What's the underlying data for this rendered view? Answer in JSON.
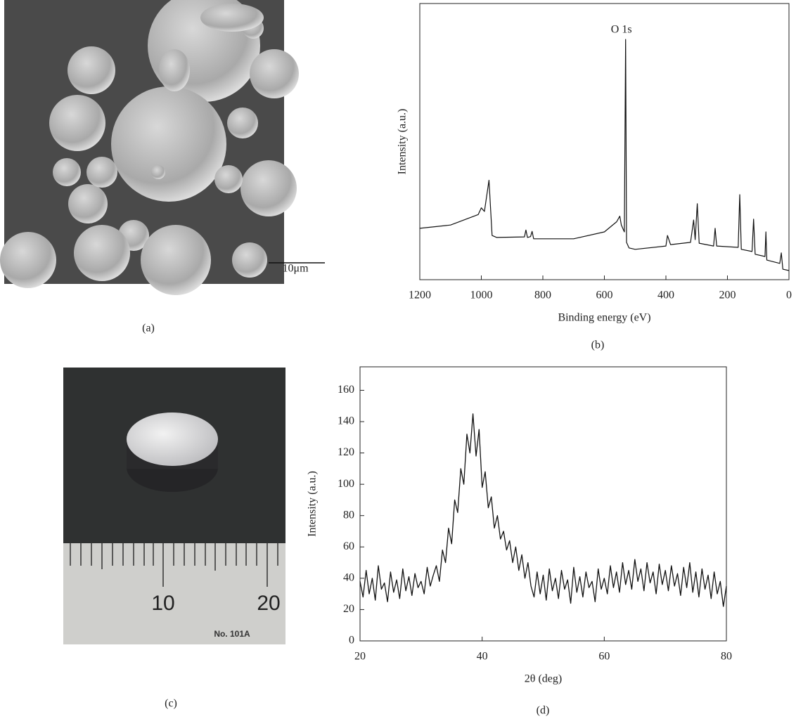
{
  "panels": [
    {
      "label": "(a)",
      "scale_bar": "10μm"
    },
    {
      "label": "(b)"
    },
    {
      "label": "(c)",
      "ruler_labels": [
        "10",
        "20"
      ],
      "ruler_mark": "No. 101A"
    },
    {
      "label": "(d)"
    }
  ],
  "chart_data": [
    {
      "type": "line",
      "xlabel": "Binding energy (eV)",
      "ylabel": "Intensity (a.u.)",
      "annotation": "O 1s",
      "x": [
        1200,
        1100,
        1010,
        1000,
        990,
        975,
        965,
        950,
        860,
        855,
        850,
        840,
        835,
        830,
        700,
        600,
        560,
        550,
        545,
        535,
        531,
        528,
        520,
        500,
        400,
        395,
        385,
        320,
        310,
        305,
        298,
        292,
        245,
        240,
        235,
        165,
        160,
        155,
        120,
        115,
        110,
        78,
        75,
        72,
        30,
        25,
        20,
        0
      ],
      "values": [
        18.6,
        19.8,
        23.6,
        26,
        24.7,
        36,
        16,
        15.3,
        15.5,
        18,
        15.3,
        15.6,
        17.5,
        14.8,
        14.8,
        17.3,
        21,
        23,
        19.8,
        17.3,
        87,
        13.5,
        11.5,
        11,
        12.2,
        16,
        12.7,
        13.5,
        21.6,
        14.5,
        27.5,
        13.2,
        12.2,
        18.6,
        12.2,
        11.7,
        30.8,
        11,
        10.2,
        21.9,
        9.2,
        8.4,
        17.3,
        7.1,
        5.9,
        9.7,
        3.8,
        3.3
      ],
      "color": "#111111",
      "xlim": [
        1200,
        0
      ],
      "xticks": [
        1200,
        1000,
        800,
        600,
        400,
        200,
        0
      ],
      "ylim": [
        0,
        100
      ]
    },
    {
      "type": "line",
      "xlabel": "2θ (deg)",
      "ylabel": "Intensity (a.u.)",
      "x": [
        20,
        20.5,
        21,
        21.5,
        22,
        22.5,
        23,
        23.5,
        24,
        24.5,
        25,
        25.5,
        26,
        26.5,
        27,
        27.5,
        28,
        28.5,
        29,
        29.5,
        30,
        30.5,
        31,
        31.5,
        32,
        32.5,
        33,
        33.5,
        34,
        34.5,
        35,
        35.5,
        36,
        36.5,
        37,
        37.5,
        38,
        38.5,
        39,
        39.5,
        40,
        40.5,
        41,
        41.5,
        42,
        42.5,
        43,
        43.5,
        44,
        44.5,
        45,
        45.5,
        46,
        46.5,
        47,
        47.5,
        48,
        48.5,
        49,
        49.5,
        50,
        50.5,
        51,
        51.5,
        52,
        52.5,
        53,
        53.5,
        54,
        54.5,
        55,
        55.5,
        56,
        56.5,
        57,
        57.5,
        58,
        58.5,
        59,
        59.5,
        60,
        60.5,
        61,
        61.5,
        62,
        62.5,
        63,
        63.5,
        64,
        64.5,
        65,
        65.5,
        66,
        66.5,
        67,
        67.5,
        68,
        68.5,
        69,
        69.5,
        70,
        70.5,
        71,
        71.5,
        72,
        72.5,
        73,
        73.5,
        74,
        74.5,
        75,
        75.5,
        76,
        76.5,
        77,
        77.5,
        78,
        78.5,
        79,
        79.5,
        80
      ],
      "values": [
        38,
        28,
        45,
        30,
        40,
        26,
        48,
        33,
        37,
        25,
        44,
        31,
        39,
        27,
        46,
        32,
        41,
        29,
        43,
        34,
        38,
        30,
        47,
        35,
        42,
        48,
        38,
        58,
        50,
        72,
        62,
        90,
        82,
        110,
        100,
        132,
        120,
        145,
        118,
        135,
        98,
        108,
        85,
        92,
        72,
        80,
        65,
        70,
        58,
        64,
        50,
        60,
        45,
        55,
        40,
        50,
        35,
        28,
        44,
        30,
        42,
        26,
        46,
        32,
        40,
        27,
        45,
        33,
        39,
        24,
        47,
        31,
        41,
        28,
        44,
        34,
        38,
        25,
        46,
        33,
        40,
        30,
        48,
        34,
        44,
        31,
        50,
        36,
        45,
        33,
        52,
        38,
        46,
        32,
        50,
        37,
        44,
        30,
        49,
        36,
        45,
        32,
        48,
        35,
        43,
        29,
        47,
        34,
        50,
        31,
        44,
        28,
        46,
        33,
        42,
        27,
        44,
        30,
        38,
        22,
        35
      ],
      "color": "#111111",
      "xlim": [
        20,
        80
      ],
      "xticks": [
        20,
        40,
        60,
        80
      ],
      "ylim": [
        0,
        175
      ],
      "yticks": [
        0,
        20,
        40,
        60,
        80,
        100,
        120,
        140,
        160
      ]
    }
  ]
}
